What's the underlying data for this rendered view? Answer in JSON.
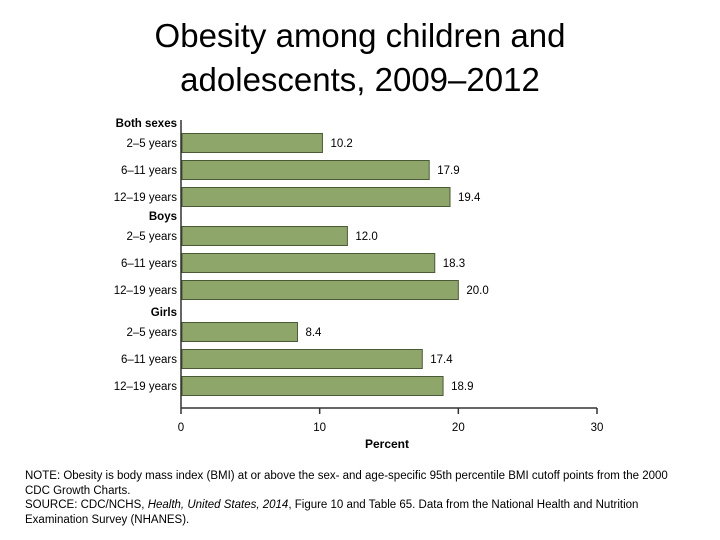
{
  "slide": {
    "title_lines": [
      "Obesity among children and",
      "adolescents, 2009–2012"
    ]
  },
  "chart_data": {
    "type": "bar",
    "orientation": "horizontal",
    "xlabel": "Percent",
    "xlim": [
      0,
      30
    ],
    "xticks": [
      "0",
      "10",
      "20",
      "30"
    ],
    "grid": false,
    "bar_color": "#8fa66a",
    "groups": [
      {
        "name": "Both sexes",
        "categories": [
          "2–5 years",
          "6–11 years",
          "12–19 years"
        ],
        "values": [
          10.2,
          17.9,
          19.4
        ],
        "labels": [
          "10.2",
          "17.9",
          "19.4"
        ]
      },
      {
        "name": "Boys",
        "categories": [
          "2–5 years",
          "6–11 years",
          "12–19 years"
        ],
        "values": [
          12.0,
          18.3,
          20.0
        ],
        "labels": [
          "12.0",
          "18.3",
          "20.0"
        ]
      },
      {
        "name": "Girls",
        "categories": [
          "2–5 years",
          "6–11 years",
          "12–19 years"
        ],
        "values": [
          8.4,
          17.4,
          18.9
        ],
        "labels": [
          "8.4",
          "17.4",
          "18.9"
        ]
      }
    ]
  },
  "footnote": {
    "note_lines": [
      "NOTE: Obesity is body mass index (BMI) at or above the sex- and age-specific 95th percentile BMI cutoff points from the 2000",
      "CDC Growth Charts."
    ],
    "source_prefix": "SOURCE: CDC/NCHS, ",
    "source_title": "Health, United States, 2014",
    "source_rest": ", Figure 10 and Table 65. Data from the National Health and Nutrition",
    "source_line2": "Examination Survey (NHANES)."
  }
}
